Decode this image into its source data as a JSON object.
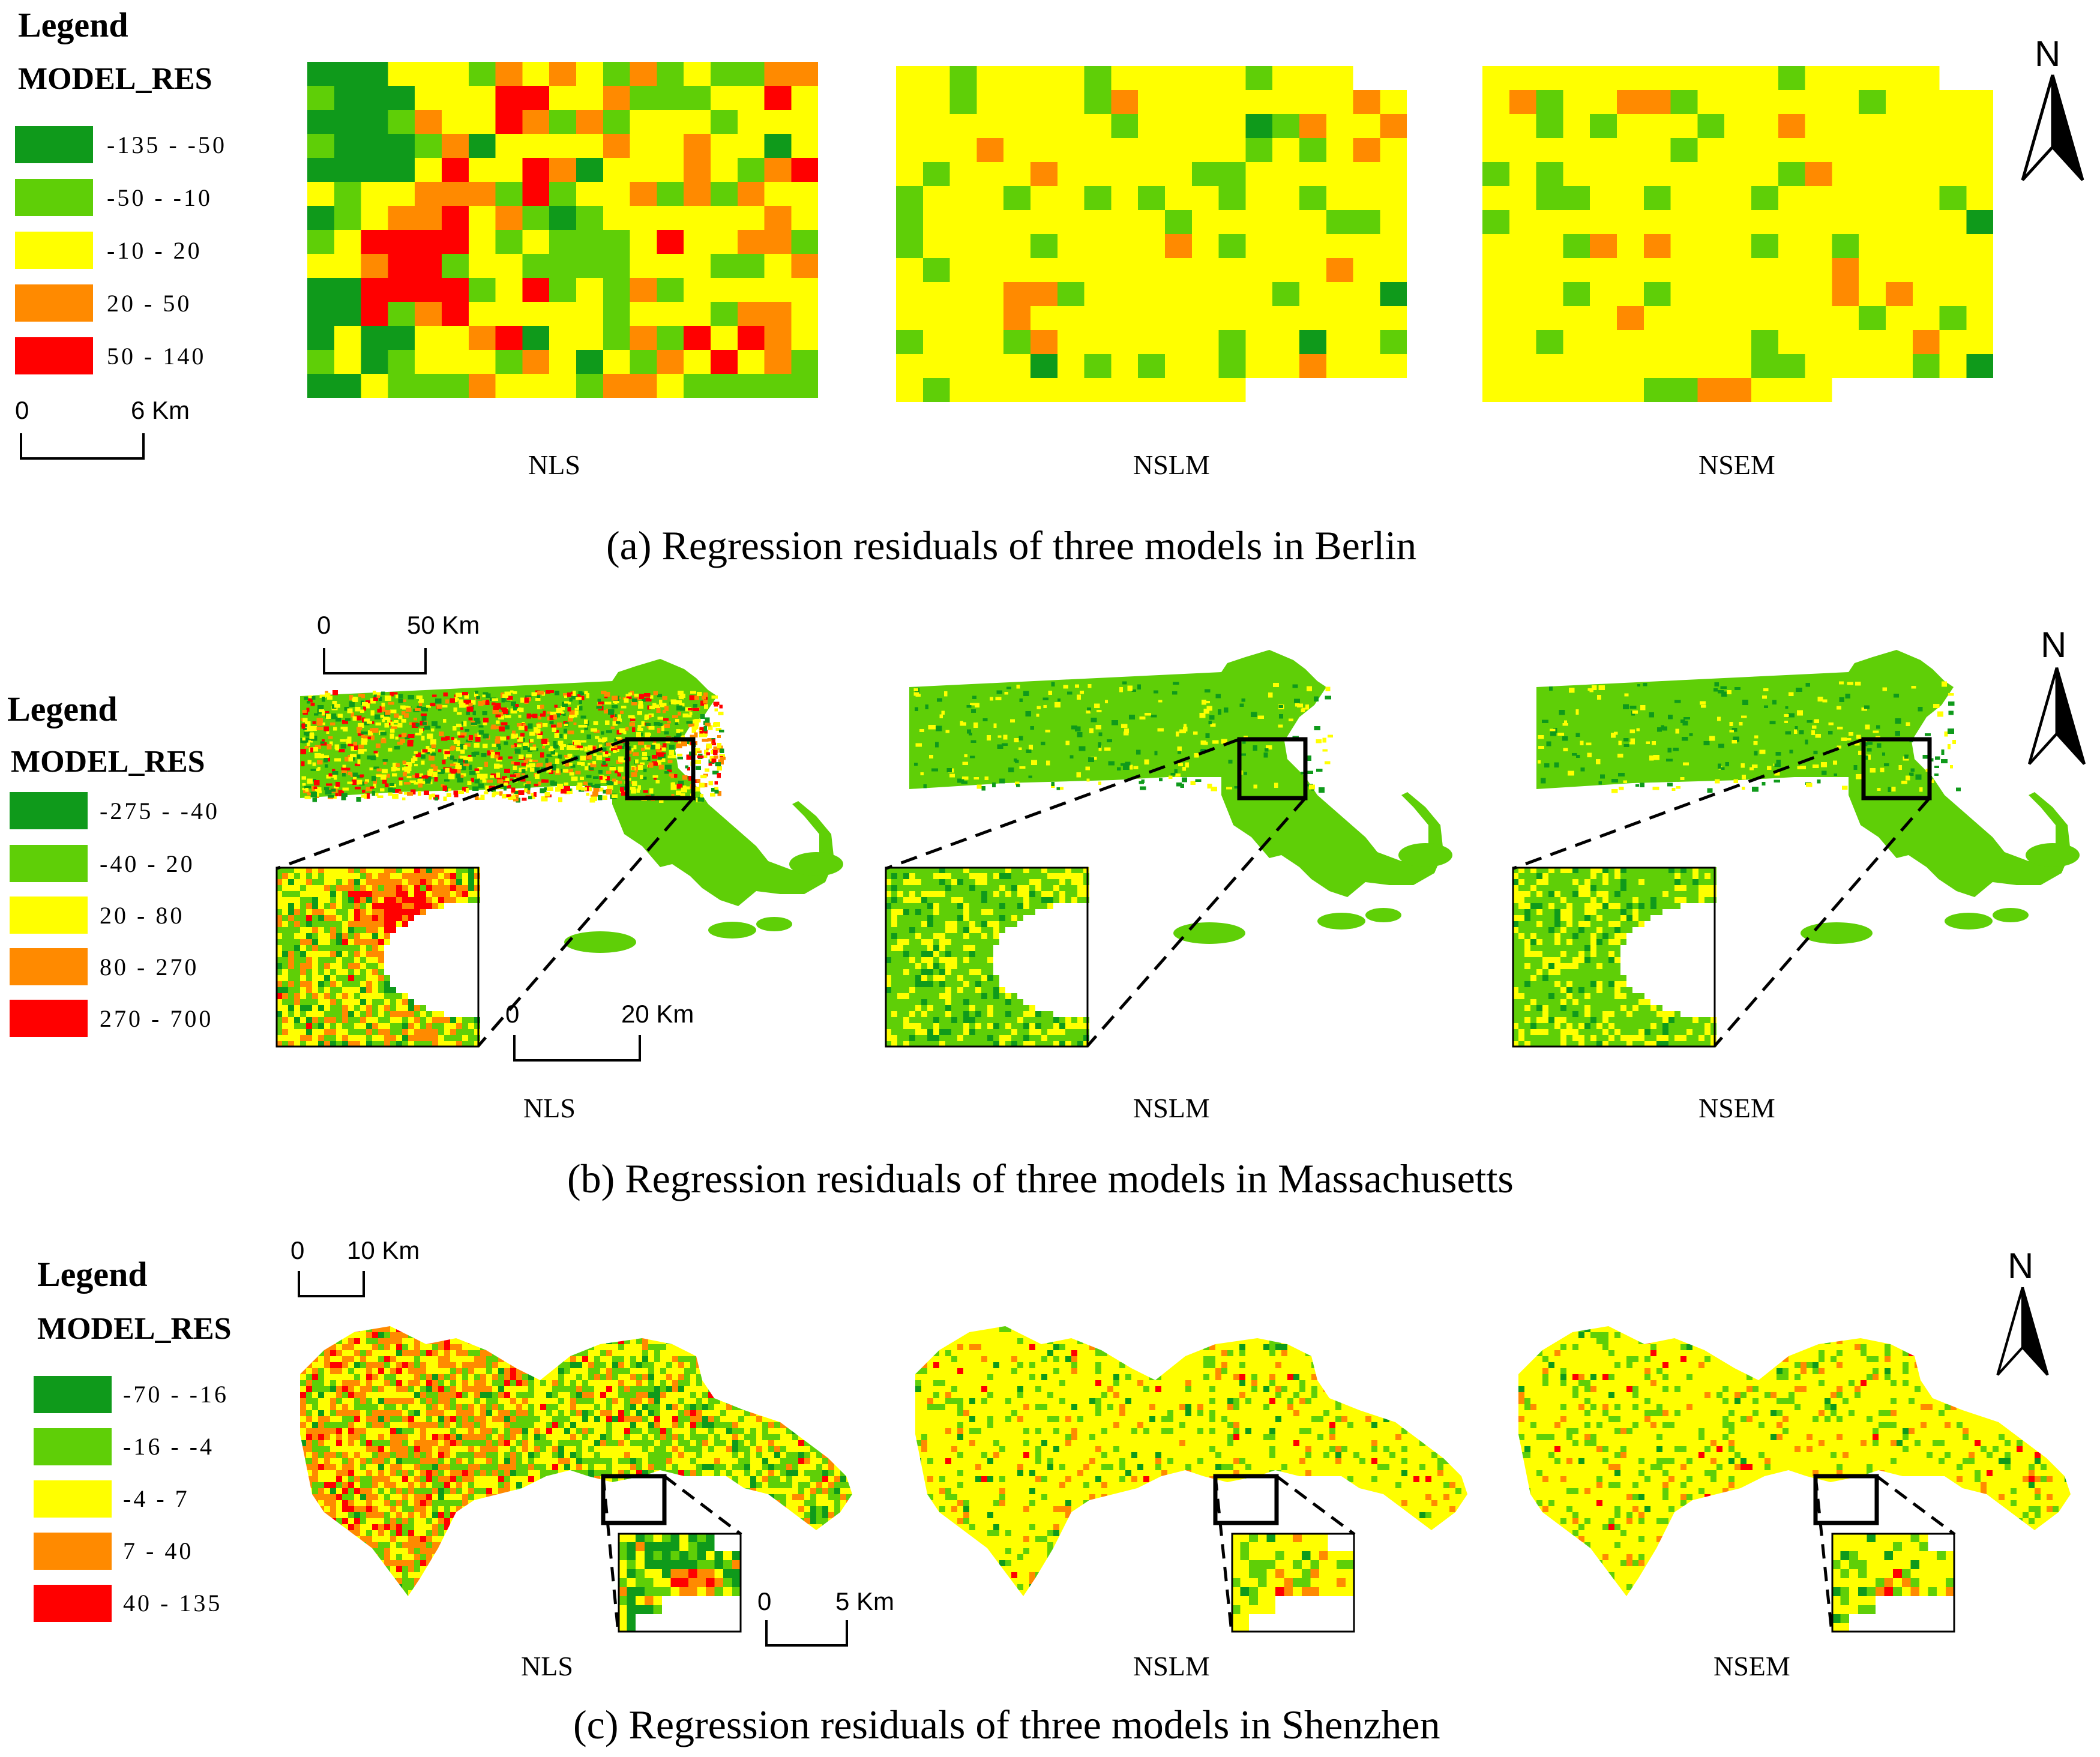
{
  "colors": {
    "dark_green": "#0f9a1b",
    "green": "#5fcf07",
    "yellow": "#ffff00",
    "orange": "#ff8a00",
    "red": "#ff0000"
  },
  "panels": [
    {
      "id": "berlin",
      "caption": "(a) Regression residuals of three models in Berlin",
      "legend": {
        "title": "Legend",
        "field": "MODEL_RES",
        "classes": [
          {
            "range": "-135 - -50",
            "color": "#0f9a1b"
          },
          {
            "range": "-50 - -10",
            "color": "#5fcf07"
          },
          {
            "range": "-10 - 20",
            "color": "#ffff00"
          },
          {
            "range": "20 - 50",
            "color": "#ff8a00"
          },
          {
            "range": "50 - 140",
            "color": "#ff0000"
          }
        ]
      },
      "scale": {
        "start": "0",
        "end": "6 Km"
      },
      "maps": [
        "NLS",
        "NSLM",
        "NSEM"
      ],
      "north": "N"
    },
    {
      "id": "massachusetts",
      "caption": "(b) Regression residuals of three models in Massachusetts",
      "legend": {
        "title": "Legend",
        "field": "MODEL_RES",
        "classes": [
          {
            "range": "-275 - -40",
            "color": "#0f9a1b"
          },
          {
            "range": "-40 - 20",
            "color": "#5fcf07"
          },
          {
            "range": "20 - 80",
            "color": "#ffff00"
          },
          {
            "range": "80 - 270",
            "color": "#ff8a00"
          },
          {
            "range": "270 - 700",
            "color": "#ff0000"
          }
        ]
      },
      "scale": {
        "start": "0",
        "end": "50 Km"
      },
      "inset_scale": {
        "start": "0",
        "end": "20 Km"
      },
      "maps": [
        "NLS",
        "NSLM",
        "NSEM"
      ],
      "north": "N"
    },
    {
      "id": "shenzhen",
      "caption": "(c) Regression residuals of three models in Shenzhen",
      "legend": {
        "title": "Legend",
        "field": "MODEL_RES",
        "classes": [
          {
            "range": "-70 - -16",
            "color": "#0f9a1b"
          },
          {
            "range": "-16 - -4",
            "color": "#5fcf07"
          },
          {
            "range": "-4 - 7",
            "color": "#ffff00"
          },
          {
            "range": "7 - 40",
            "color": "#ff8a00"
          },
          {
            "range": "40 - 135",
            "color": "#ff0000"
          }
        ]
      },
      "scale": {
        "start": "0",
        "end": "10 Km"
      },
      "inset_scale": {
        "start": "0",
        "end": "5 Km"
      },
      "maps": [
        "NLS",
        "NSLM",
        "NSEM"
      ],
      "north": "N"
    }
  ]
}
